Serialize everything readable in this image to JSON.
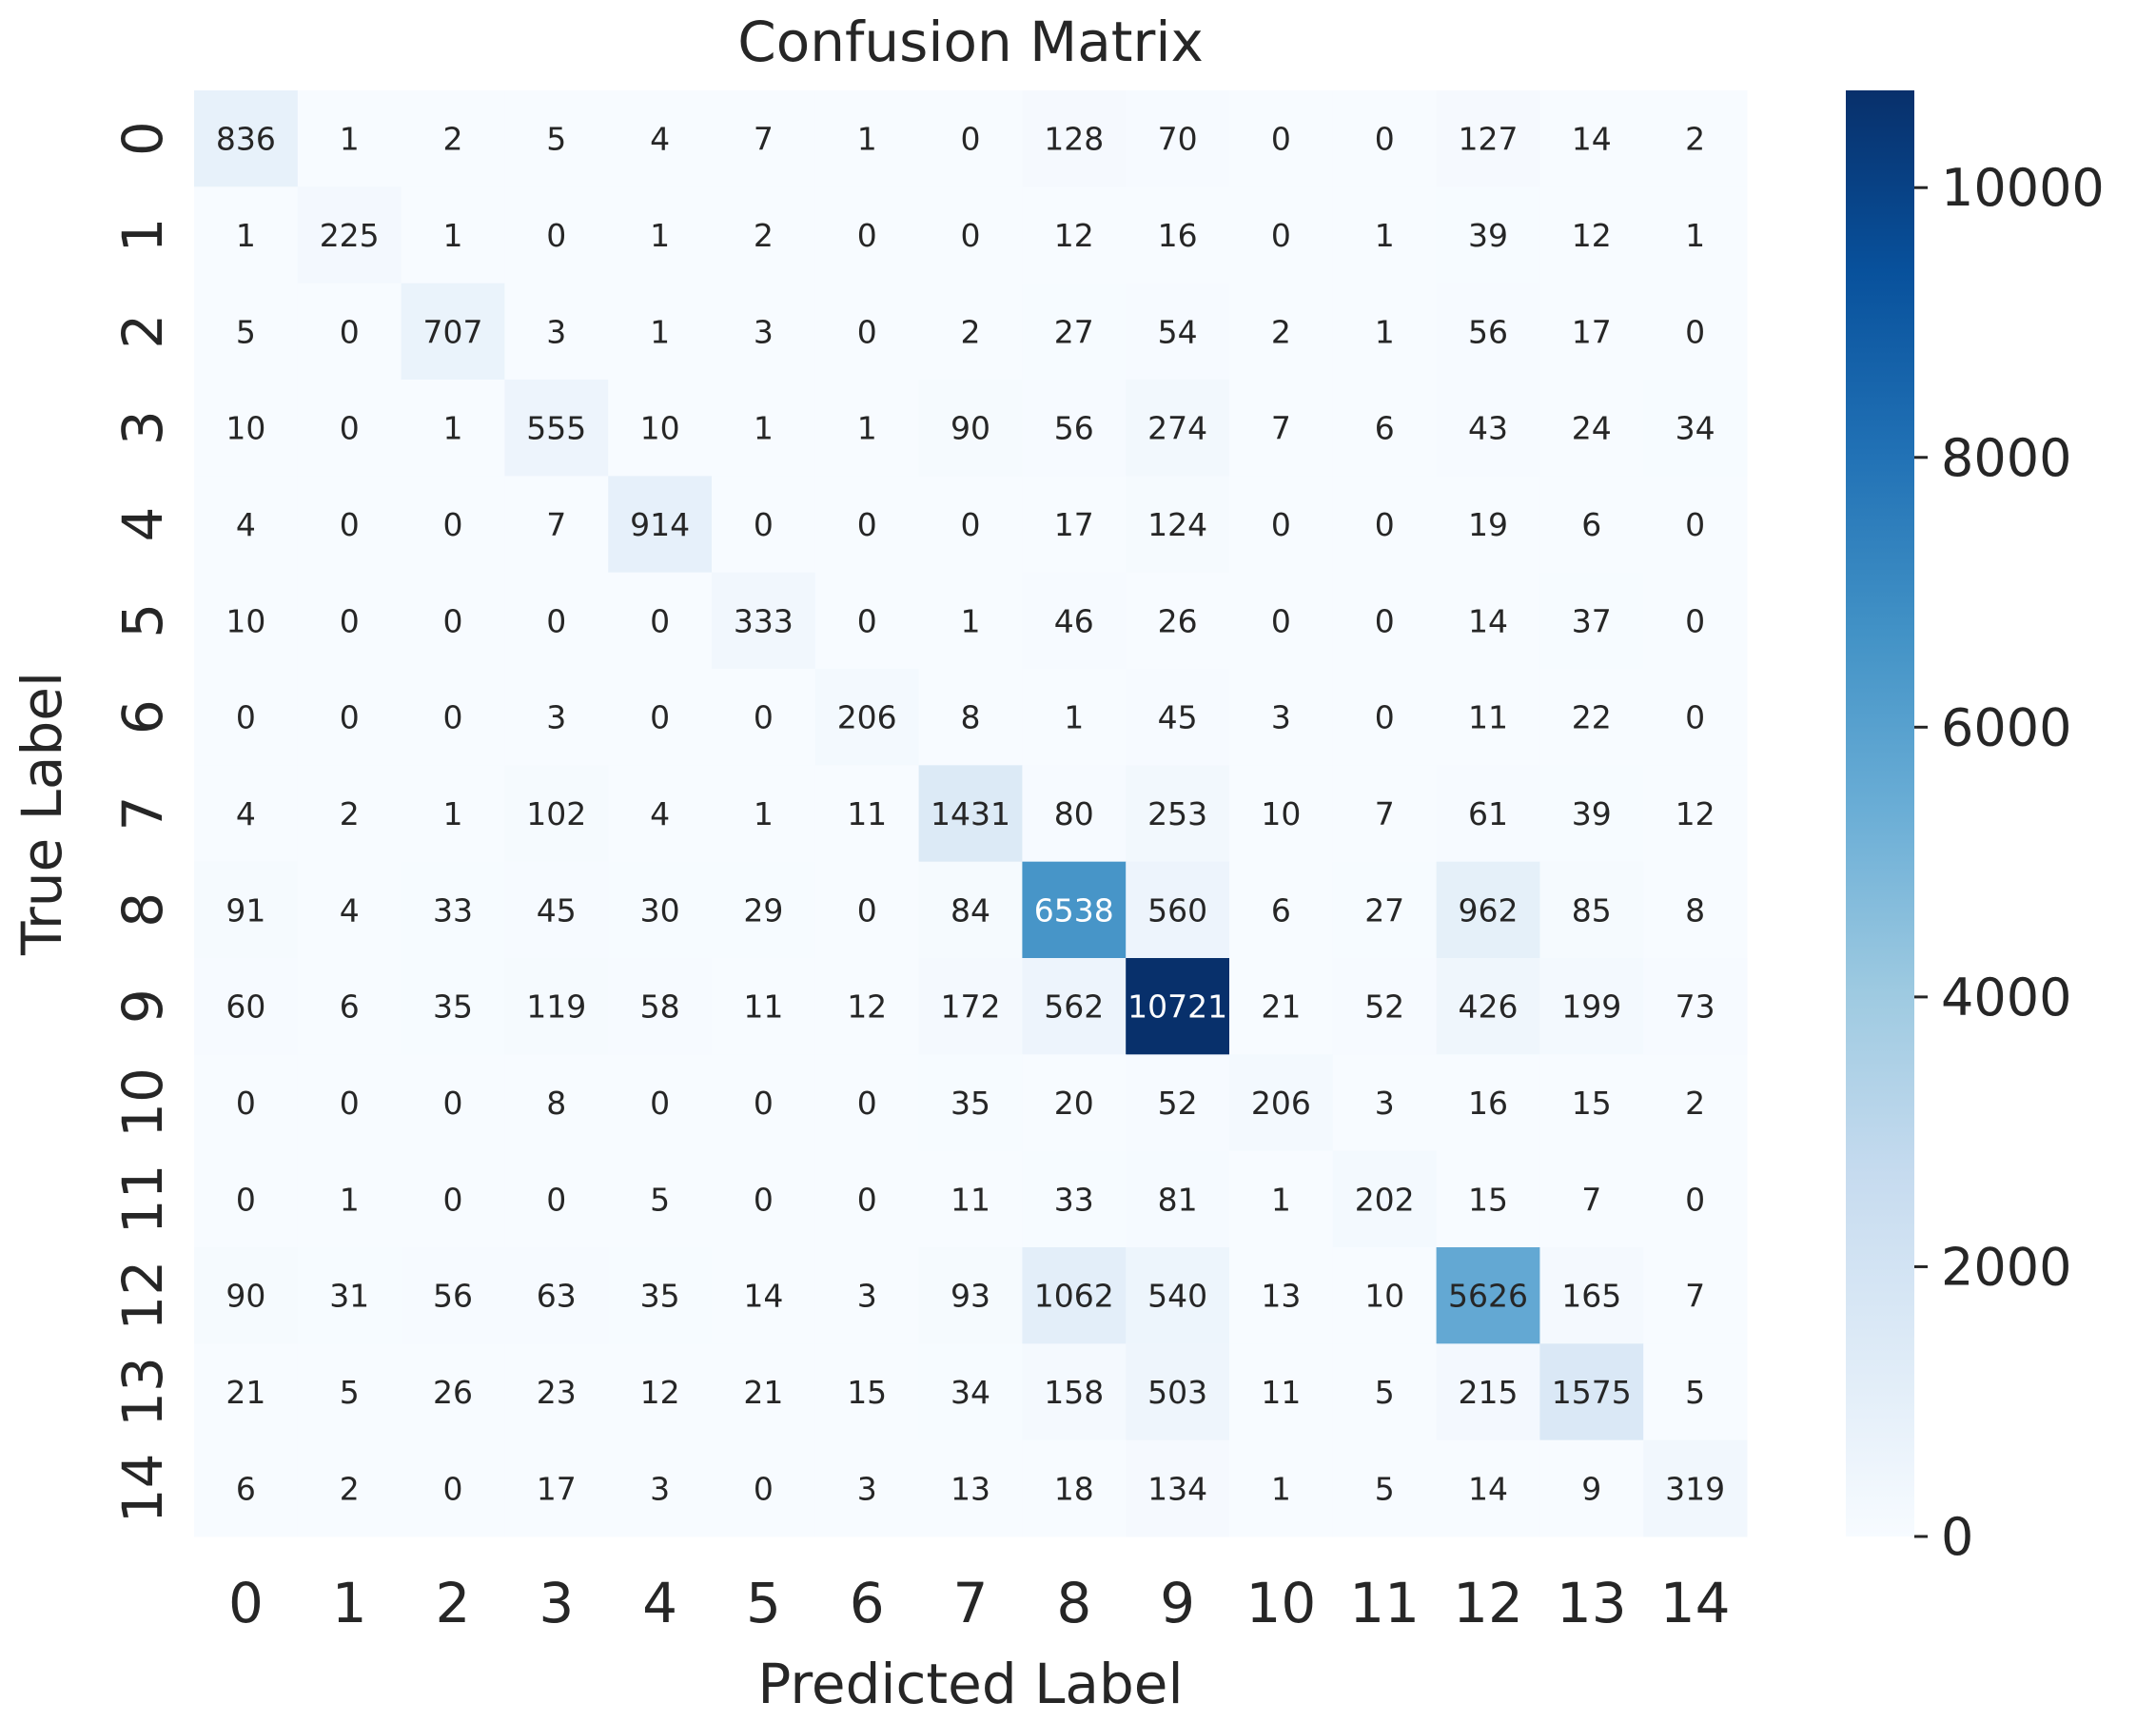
{
  "chart_data": {
    "type": "heatmap",
    "title": "Confusion Matrix",
    "xlabel": "Predicted Label",
    "ylabel": "True Label",
    "x_categories": [
      "0",
      "1",
      "2",
      "3",
      "4",
      "5",
      "6",
      "7",
      "8",
      "9",
      "10",
      "11",
      "12",
      "13",
      "14"
    ],
    "y_categories": [
      "0",
      "1",
      "2",
      "3",
      "4",
      "5",
      "6",
      "7",
      "8",
      "9",
      "10",
      "11",
      "12",
      "13",
      "14"
    ],
    "values": [
      [
        836,
        1,
        2,
        5,
        4,
        7,
        1,
        0,
        128,
        70,
        0,
        0,
        127,
        14,
        2
      ],
      [
        1,
        225,
        1,
        0,
        1,
        2,
        0,
        0,
        12,
        16,
        0,
        1,
        39,
        12,
        1
      ],
      [
        5,
        0,
        707,
        3,
        1,
        3,
        0,
        2,
        27,
        54,
        2,
        1,
        56,
        17,
        0
      ],
      [
        10,
        0,
        1,
        555,
        10,
        1,
        1,
        90,
        56,
        274,
        7,
        6,
        43,
        24,
        34
      ],
      [
        4,
        0,
        0,
        7,
        914,
        0,
        0,
        0,
        17,
        124,
        0,
        0,
        19,
        6,
        0
      ],
      [
        10,
        0,
        0,
        0,
        0,
        333,
        0,
        1,
        46,
        26,
        0,
        0,
        14,
        37,
        0
      ],
      [
        0,
        0,
        0,
        3,
        0,
        0,
        206,
        8,
        1,
        45,
        3,
        0,
        11,
        22,
        0
      ],
      [
        4,
        2,
        1,
        102,
        4,
        1,
        11,
        1431,
        80,
        253,
        10,
        7,
        61,
        39,
        12
      ],
      [
        91,
        4,
        33,
        45,
        30,
        29,
        0,
        84,
        6538,
        560,
        6,
        27,
        962,
        85,
        8
      ],
      [
        60,
        6,
        35,
        119,
        58,
        11,
        12,
        172,
        562,
        10721,
        21,
        52,
        426,
        199,
        73
      ],
      [
        0,
        0,
        0,
        8,
        0,
        0,
        0,
        35,
        20,
        52,
        206,
        3,
        16,
        15,
        2
      ],
      [
        0,
        1,
        0,
        0,
        5,
        0,
        0,
        11,
        33,
        81,
        1,
        202,
        15,
        7,
        0
      ],
      [
        90,
        31,
        56,
        63,
        35,
        14,
        3,
        93,
        1062,
        540,
        13,
        10,
        5626,
        165,
        7
      ],
      [
        21,
        5,
        26,
        23,
        12,
        21,
        15,
        34,
        158,
        503,
        11,
        5,
        215,
        1575,
        5
      ],
      [
        6,
        2,
        0,
        17,
        3,
        0,
        3,
        13,
        18,
        134,
        1,
        5,
        14,
        9,
        319
      ]
    ],
    "colorbar": {
      "min": 0,
      "max": 10721,
      "ticks": [
        0,
        2000,
        4000,
        6000,
        8000,
        10000
      ],
      "colormap": "Blues",
      "colors": [
        "#f7fbff",
        "#deebf7",
        "#c6dbef",
        "#9ecae1",
        "#6baed6",
        "#4292c6",
        "#2171b5",
        "#08519c",
        "#08306b"
      ]
    },
    "grid": false,
    "legend": "colorbar-right"
  }
}
